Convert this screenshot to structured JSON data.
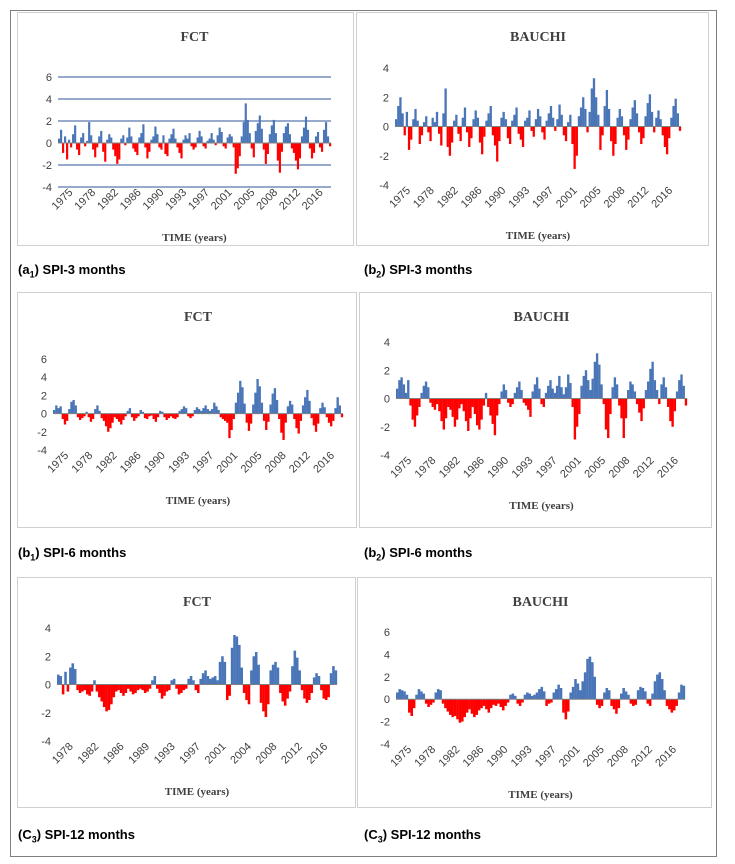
{
  "chart_data": [
    {
      "id": "c1",
      "type": "bar",
      "title": "FCT",
      "xlabel": "TIME (years)",
      "ylim": [
        -4,
        6
      ],
      "yticks": [
        -4,
        -2,
        0,
        2,
        4,
        6
      ],
      "grid": true,
      "x_ticks": [
        "1975",
        "1978",
        "1982",
        "1986",
        "1990",
        "1993",
        "1997",
        "2001",
        "2005",
        "2008",
        "2012",
        "2016"
      ],
      "series": [
        {
          "values": [
            0.4,
            1.2,
            -0.9,
            0.6,
            -1.5,
            0.3,
            -0.4,
            0.8,
            1.6,
            -0.6,
            -1.1,
            0.5,
            0.9,
            -0.3,
            0.2,
            1.9,
            0.7,
            -0.6,
            -1.3,
            -0.4,
            0.6,
            1.1,
            -0.8,
            -1.7,
            0.3,
            0.8,
            0.5,
            -0.6,
            -1.2,
            -1.9,
            -1.5,
            0.4,
            0.7,
            -0.2,
            0.5,
            1.4,
            0.6,
            -0.5,
            -0.8,
            -1.1,
            0.5,
            0.9,
            1.7,
            -0.4,
            -1.4,
            -0.8,
            0.3,
            0.6,
            1.5,
            0.8,
            -0.4,
            -0.6,
            0.7,
            -1.0,
            -1.2,
            0.4,
            0.8,
            1.3,
            0.4,
            -0.4,
            -0.9,
            -1.4,
            0.3,
            0.7,
            0.4,
            0.9,
            -0.3,
            -0.6,
            -0.4,
            0.5,
            1.1,
            0.6,
            -0.3,
            -0.5,
            0.2,
            0.4,
            0.9,
            0.3,
            -0.2,
            0.7,
            1.4,
            1.0,
            -0.3,
            -0.5,
            0.5,
            0.8,
            0.6,
            -0.4,
            -2.8,
            -2.3,
            -1.2,
            0.6,
            1.9,
            3.6,
            2.1,
            0.9,
            -0.5,
            -1.3,
            1.1,
            1.8,
            2.5,
            1.3,
            -0.6,
            -1.9,
            -1.0,
            0.8,
            1.6,
            2.1,
            0.9,
            -1.6,
            -2.7,
            -0.8,
            0.9,
            1.5,
            1.8,
            0.8,
            -0.5,
            -0.9,
            -1.6,
            -2.4,
            -1.4,
            0.6,
            1.4,
            2.4,
            1.2,
            -0.5,
            -1.4,
            -0.9,
            0.6,
            1.0,
            -0.4,
            -0.8,
            1.2,
            1.9,
            0.6,
            -0.3
          ]
        }
      ]
    },
    {
      "id": "c2",
      "type": "bar",
      "title": "BAUCHI",
      "xlabel": "TIME (years)",
      "ylim": [
        -4,
        4
      ],
      "yticks": [
        -4,
        -2,
        0,
        2,
        4
      ],
      "grid": false,
      "x_ticks": [
        "1975",
        "1978",
        "1982",
        "1986",
        "1990",
        "1993",
        "1997",
        "2001",
        "2005",
        "2008",
        "2012",
        "2016"
      ],
      "series": [
        {
          "values": [
            0.5,
            1.4,
            2.0,
            0.9,
            -0.6,
            1.0,
            -1.6,
            -0.9,
            0.5,
            1.2,
            0.4,
            -1.2,
            -0.6,
            0.3,
            0.7,
            -0.4,
            -1.0,
            0.6,
            0.3,
            1.0,
            -0.5,
            -1.3,
            0.9,
            2.6,
            -1.4,
            -2.0,
            -1.1,
            0.4,
            0.8,
            -0.5,
            -1.0,
            0.6,
            1.3,
            -0.4,
            -1.4,
            -0.8,
            0.5,
            1.1,
            0.6,
            -1.1,
            -1.9,
            -0.7,
            0.4,
            0.9,
            1.4,
            -0.6,
            -1.3,
            -2.4,
            -1.0,
            0.6,
            1.0,
            0.5,
            -0.8,
            -1.2,
            0.4,
            0.8,
            1.3,
            -0.5,
            -0.9,
            -1.4,
            0.4,
            0.6,
            1.1,
            -0.3,
            -0.7,
            0.5,
            1.2,
            0.7,
            -0.4,
            -0.9,
            0.4,
            0.9,
            1.4,
            0.6,
            -0.3,
            0.5,
            1.5,
            0.8,
            -0.6,
            -1.0,
            0.3,
            0.8,
            -1.2,
            -2.9,
            -2.0,
            0.7,
            1.3,
            2.0,
            1.2,
            -0.4,
            1.0,
            2.6,
            3.3,
            2.0,
            0.8,
            -1.6,
            -0.6,
            1.4,
            2.5,
            1.2,
            -1.0,
            -2.0,
            -1.2,
            0.6,
            1.2,
            0.7,
            -0.6,
            -1.6,
            -0.9,
            0.5,
            1.3,
            1.8,
            0.9,
            -0.4,
            -1.2,
            -0.8,
            0.7,
            1.6,
            2.2,
            1.0,
            -0.4,
            0.6,
            1.1,
            0.5,
            -0.6,
            -1.4,
            -1.9,
            -0.8,
            0.6,
            1.4,
            1.9,
            0.9,
            -0.3
          ]
        }
      ]
    },
    {
      "id": "c3",
      "type": "bar",
      "title": "FCT",
      "xlabel": "TIME (years)",
      "ylim": [
        -4,
        6
      ],
      "yticks": [
        -4,
        -2,
        0,
        2,
        4,
        6
      ],
      "grid": false,
      "x_ticks": [
        "1975",
        "1978",
        "1982",
        "1986",
        "1990",
        "1993",
        "1997",
        "2001",
        "2005",
        "2008",
        "2012",
        "2016"
      ],
      "series": [
        {
          "values": [
            0.4,
            0.9,
            0.6,
            0.8,
            -0.6,
            -1.2,
            -0.8,
            0.5,
            1.3,
            1.5,
            0.9,
            -0.4,
            -0.7,
            -0.5,
            -0.3,
            0.2,
            -0.4,
            -0.9,
            -0.6,
            0.5,
            0.9,
            0.3,
            -0.5,
            -0.8,
            -1.4,
            -2.0,
            -1.6,
            -1.0,
            -0.4,
            -0.6,
            -0.9,
            -1.2,
            -0.7,
            -0.3,
            0.3,
            0.6,
            -0.4,
            -0.8,
            -0.5,
            -0.3,
            0.4,
            0.2,
            -0.5,
            -0.6,
            -0.3,
            -0.2,
            -0.6,
            -0.9,
            -0.4,
            0.3,
            0.2,
            -0.4,
            -0.7,
            -0.5,
            -0.3,
            -0.5,
            -0.6,
            -0.4,
            0.3,
            0.5,
            0.8,
            0.6,
            -0.3,
            -0.5,
            -0.3,
            0.4,
            0.7,
            0.5,
            0.3,
            0.6,
            0.9,
            0.5,
            0.3,
            0.5,
            1.2,
            0.8,
            0.4,
            -0.4,
            -0.6,
            -0.8,
            -1.0,
            -2.7,
            -1.8,
            -0.6,
            1.2,
            2.3,
            3.6,
            2.9,
            1.1,
            -1.0,
            -1.9,
            -1.1,
            1.0,
            2.3,
            3.8,
            3.0,
            1.2,
            -0.8,
            -1.8,
            -0.9,
            1.0,
            2.2,
            2.8,
            1.5,
            -0.6,
            -2.1,
            -2.9,
            -1.0,
            0.8,
            1.4,
            1.0,
            -0.6,
            -1.6,
            -2.2,
            -0.8,
            0.9,
            1.8,
            2.6,
            1.4,
            -0.5,
            -1.3,
            -2.0,
            -1.1,
            0.6,
            1.2,
            0.7,
            -0.4,
            -1.0,
            -1.4,
            -0.8,
            0.6,
            1.8,
            0.9,
            -0.4
          ]
        }
      ]
    },
    {
      "id": "c4",
      "type": "bar",
      "title": "BAUCHI",
      "xlabel": "TIME (years)",
      "ylim": [
        -4,
        4
      ],
      "yticks": [
        -4,
        -2,
        0,
        2,
        4
      ],
      "grid": false,
      "x_ticks": [
        "1975",
        "1978",
        "1982",
        "1986",
        "1990",
        "1993",
        "1997",
        "2001",
        "2005",
        "2008",
        "2012",
        "2016"
      ],
      "series": [
        {
          "values": [
            0.7,
            1.3,
            1.5,
            1.0,
            0.4,
            1.3,
            -0.5,
            -1.5,
            -2.0,
            -1.2,
            -0.6,
            0.4,
            0.9,
            1.2,
            0.8,
            -0.3,
            -0.6,
            -0.8,
            -0.4,
            -0.9,
            -1.6,
            -2.2,
            -1.4,
            -0.6,
            -0.8,
            -1.3,
            -2.0,
            -1.5,
            -0.7,
            -0.4,
            -0.9,
            -1.6,
            -2.3,
            -1.4,
            -0.6,
            -1.1,
            -1.9,
            -2.2,
            -1.5,
            -0.5,
            0.4,
            -0.6,
            -1.2,
            -1.8,
            -2.6,
            -1.2,
            -0.4,
            0.5,
            1.0,
            0.6,
            -0.3,
            -0.6,
            -0.4,
            0.4,
            0.8,
            1.2,
            0.6,
            -0.3,
            -0.5,
            -0.8,
            -1.3,
            0.5,
            1.0,
            1.5,
            0.7,
            -0.4,
            -0.6,
            0.4,
            0.9,
            1.3,
            0.7,
            0.4,
            0.9,
            1.6,
            0.8,
            0.3,
            0.8,
            1.7,
            1.1,
            -0.6,
            -2.9,
            -2.0,
            -1.1,
            0.9,
            1.6,
            2.0,
            1.3,
            0.6,
            1.4,
            2.6,
            3.2,
            2.4,
            1.0,
            -0.4,
            -2.2,
            -2.8,
            -1.1,
            0.8,
            1.5,
            1.0,
            -0.5,
            -1.4,
            -2.8,
            -1.4,
            0.6,
            1.2,
            1.0,
            0.5,
            -0.4,
            -1.0,
            -1.6,
            -0.7,
            0.6,
            1.2,
            2.1,
            2.6,
            1.3,
            0.6,
            -0.4,
            1.0,
            1.5,
            0.8,
            -0.6,
            -1.6,
            -2.0,
            -0.9,
            0.5,
            1.3,
            1.7,
            0.9,
            -0.5
          ]
        }
      ]
    },
    {
      "id": "c5",
      "type": "bar",
      "title": "FCT",
      "xlabel": "TIME (years)",
      "ylim": [
        -4,
        4
      ],
      "yticks": [
        -4,
        -2,
        0,
        2,
        4
      ],
      "grid": false,
      "x_ticks": [
        "1978",
        "1982",
        "1986",
        "1989",
        "1993",
        "1997",
        "2001",
        "2004",
        "2008",
        "2012",
        "2016"
      ],
      "series": [
        {
          "values": [
            0.7,
            0.6,
            -0.7,
            0.9,
            -0.5,
            1.2,
            1.5,
            1.1,
            -0.4,
            -0.6,
            -0.5,
            -0.4,
            -0.7,
            -0.8,
            -0.5,
            0.3,
            -0.5,
            -0.9,
            -1.2,
            -1.6,
            -1.9,
            -1.8,
            -1.4,
            -0.9,
            -0.5,
            -0.4,
            -0.6,
            -0.8,
            -0.6,
            -0.3,
            -0.5,
            -0.7,
            -0.6,
            -0.4,
            -0.3,
            -0.4,
            -0.6,
            -0.5,
            -0.3,
            0.3,
            0.6,
            -0.3,
            -0.6,
            -1.0,
            -0.8,
            -0.5,
            -0.4,
            0.3,
            0.4,
            -0.3,
            -0.7,
            -0.6,
            -0.4,
            -0.3,
            0.4,
            0.6,
            0.3,
            -0.4,
            -0.6,
            0.4,
            0.8,
            1.0,
            0.6,
            0.4,
            0.5,
            0.6,
            0.3,
            1.6,
            2.0,
            1.6,
            -1.1,
            -0.8,
            2.6,
            3.5,
            3.4,
            2.8,
            1.2,
            -0.6,
            -1.1,
            -1.4,
            1.0,
            2.0,
            2.3,
            1.4,
            -1.3,
            -1.9,
            -2.3,
            -1.4,
            1.0,
            1.4,
            1.6,
            1.2,
            -0.6,
            -1.2,
            -1.5,
            -1.0,
            -0.5,
            1.3,
            2.4,
            1.9,
            1.0,
            -0.4,
            -1.0,
            -1.3,
            -1.1,
            -0.6,
            0.5,
            0.8,
            0.6,
            -0.4,
            -1.0,
            -1.1,
            -0.9,
            0.8,
            1.3,
            1.0
          ]
        }
      ]
    },
    {
      "id": "c6",
      "type": "bar",
      "title": "BAUCHI",
      "xlabel": "TIME (years)",
      "ylim": [
        -4,
        6
      ],
      "yticks": [
        -4,
        -2,
        0,
        2,
        4,
        6
      ],
      "grid": false,
      "x_ticks": [
        "1975",
        "1978",
        "1982",
        "1986",
        "1990",
        "1993",
        "1997",
        "2001",
        "2005",
        "2008",
        "2012",
        "2016"
      ],
      "series": [
        {
          "values": [
            0.6,
            0.9,
            0.8,
            0.7,
            0.4,
            -1.2,
            -1.5,
            -0.8,
            0.4,
            0.9,
            0.7,
            0.5,
            -0.4,
            -0.7,
            -0.5,
            -0.3,
            0.6,
            0.9,
            0.8,
            -0.4,
            -0.8,
            -1.1,
            -1.4,
            -1.6,
            -1.5,
            -1.8,
            -2.1,
            -2.0,
            -1.6,
            -1.2,
            -0.9,
            -1.3,
            -1.6,
            -1.4,
            -1.0,
            -0.8,
            -0.6,
            -0.9,
            -1.2,
            -0.8,
            -0.5,
            -0.6,
            -0.4,
            -0.7,
            -1.0,
            -0.6,
            -0.3,
            0.4,
            0.5,
            0.3,
            -0.4,
            -0.6,
            -0.3,
            0.4,
            0.6,
            0.5,
            0.3,
            0.4,
            0.6,
            0.9,
            1.1,
            0.7,
            -0.6,
            -0.4,
            -0.3,
            0.6,
            0.9,
            1.3,
            1.0,
            -1.2,
            -1.8,
            -1.1,
            0.6,
            1.1,
            1.8,
            1.4,
            0.8,
            1.6,
            2.4,
            3.6,
            3.8,
            3.3,
            2.0,
            -0.5,
            -0.8,
            -0.6,
            0.6,
            1.0,
            0.8,
            -0.6,
            -0.9,
            -1.3,
            -0.8,
            0.5,
            1.0,
            0.7,
            0.4,
            -0.4,
            -0.6,
            -0.5,
            0.8,
            1.1,
            1.0,
            0.7,
            -0.4,
            -0.6,
            0.5,
            1.6,
            2.2,
            2.4,
            1.8,
            0.8,
            -0.6,
            -0.9,
            -1.2,
            -1.0,
            -0.6,
            0.6,
            1.3,
            1.2
          ]
        }
      ]
    }
  ],
  "captions": {
    "a1": {
      "pre": "(a",
      "sub": "1",
      "post": ") SPI-3 months"
    },
    "b2_3": {
      "pre": "(b",
      "sub": "2",
      "post": ") SPI-3 months"
    },
    "b1": {
      "pre": "(b",
      "sub": "1",
      "post": ") SPI-6 months"
    },
    "b2_6": {
      "pre": "(b",
      "sub": "2",
      "post": ") SPI-6 months"
    },
    "c3_l": {
      "pre": "(C",
      "sub": "3",
      "post": ") SPI-12 months"
    },
    "c3_r": {
      "pre": "(C",
      "sub": "3",
      "post": ") SPI-12 months"
    }
  },
  "colors": {
    "positive": "#4a76b8",
    "negative": "#ff0000",
    "grid": "#2f5597",
    "axis": "#808080"
  }
}
